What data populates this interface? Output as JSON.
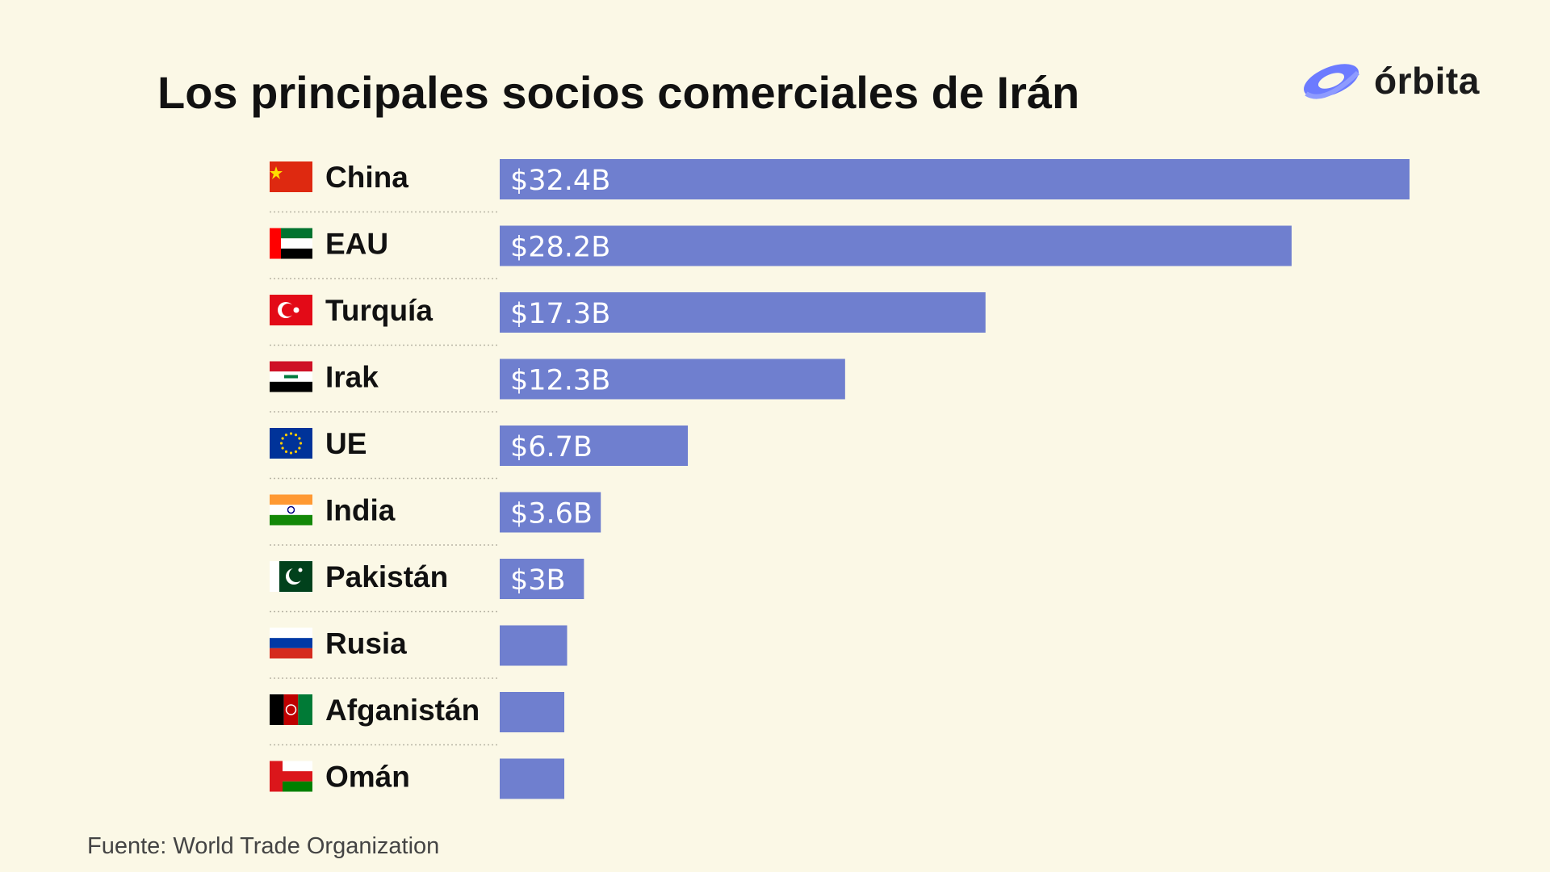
{
  "title": "Los principales socios comerciales de Irán",
  "brand": {
    "name": "órbita",
    "icon": "orbit-logo-icon",
    "color": "#6c7bff"
  },
  "source": "Fuente: World Trade Organization",
  "colors": {
    "bar": "#6f7fcf",
    "background": "#fbf8e6"
  },
  "chart_data": {
    "type": "bar",
    "orientation": "horizontal",
    "title": "Los principales socios comerciales de Irán",
    "categories": [
      "China",
      "EAU",
      "Turquía",
      "Irak",
      "UE",
      "India",
      "Pakistán",
      "Rusia",
      "Afganistán",
      "Omán"
    ],
    "values": [
      32.4,
      28.2,
      17.3,
      12.3,
      6.7,
      3.6,
      3.0,
      2.4,
      2.3,
      2.3
    ],
    "value_labels": [
      "$32.4B",
      "$28.2B",
      "$17.3B",
      "$12.3B",
      "$6.7B",
      "$3.6B",
      "$3B",
      "",
      "",
      ""
    ],
    "flags": [
      "china-flag-icon",
      "uae-flag-icon",
      "turkey-flag-icon",
      "iraq-flag-icon",
      "eu-flag-icon",
      "india-flag-icon",
      "pakistan-flag-icon",
      "russia-flag-icon",
      "afghanistan-flag-icon",
      "oman-flag-icon"
    ],
    "xlabel": "",
    "ylabel": "",
    "xlim": [
      0,
      32.4
    ],
    "grid": false,
    "legend": "none"
  }
}
